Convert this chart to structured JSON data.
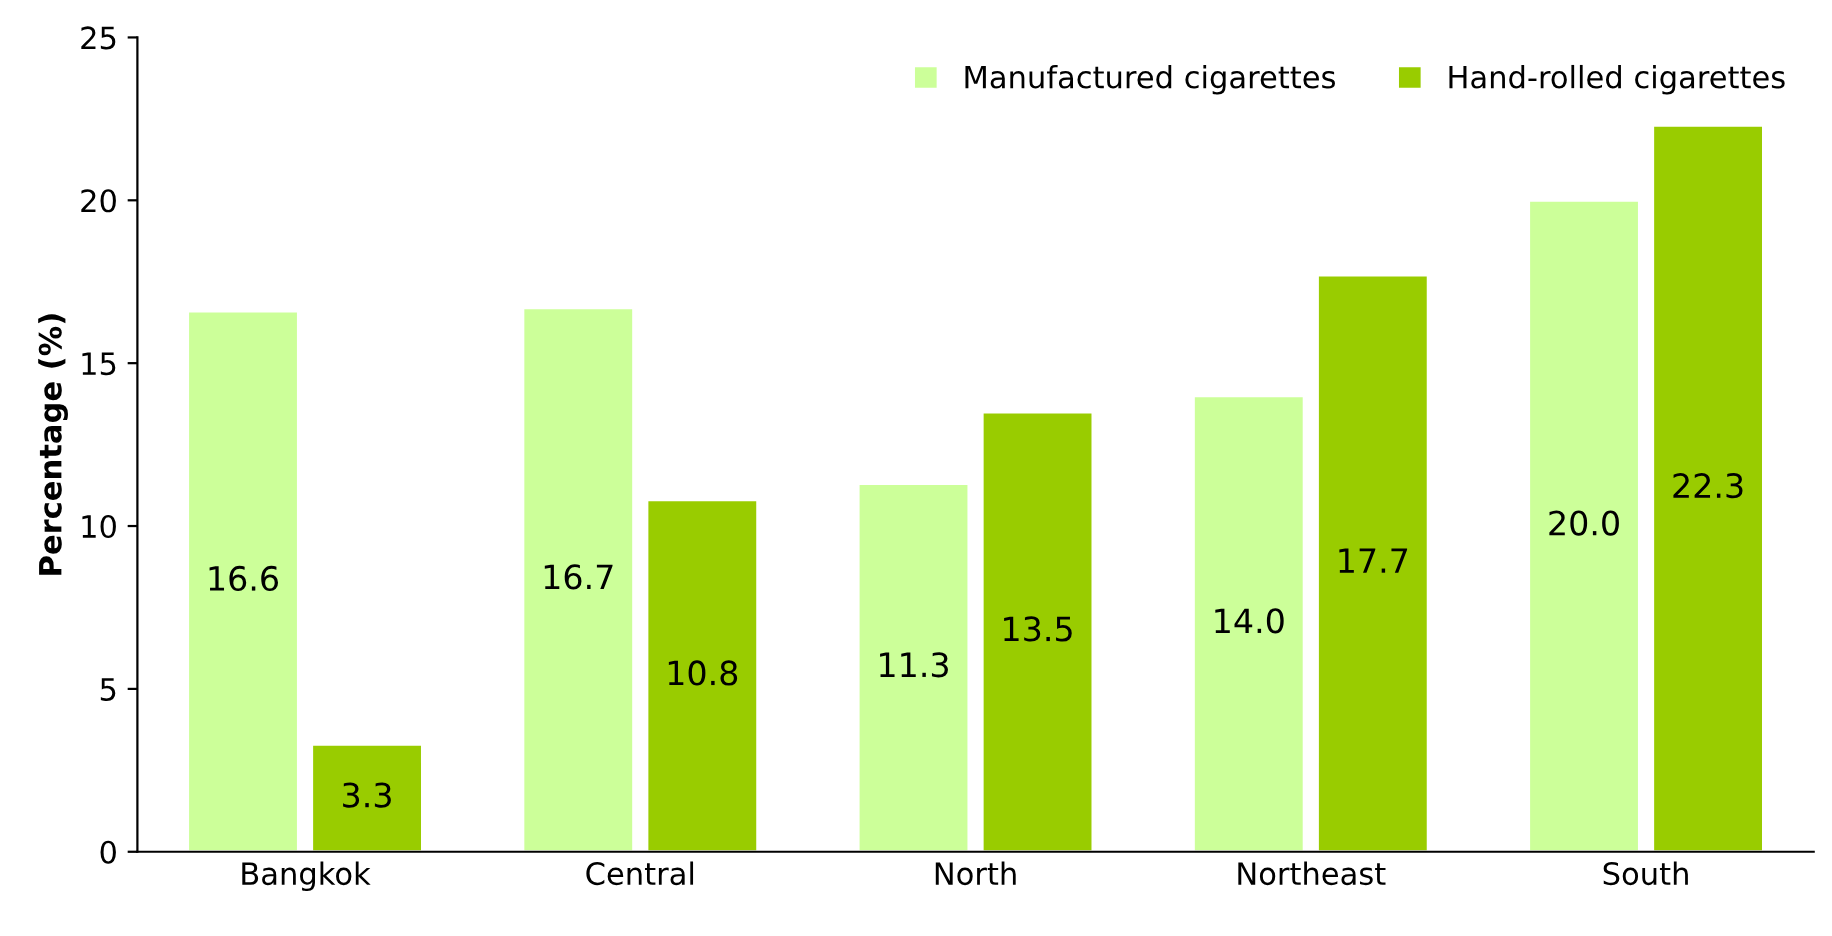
{
  "chart_data": {
    "type": "bar",
    "ylabel": "Percentage (%)",
    "categories": [
      "Bangkok",
      "Central",
      "North",
      "Northeast",
      "South"
    ],
    "series": [
      {
        "name": "Manufactured cigarettes",
        "color": "#ccff99",
        "values": [
          16.6,
          16.7,
          11.3,
          14.0,
          20.0
        ],
        "value_labels": [
          "16.6",
          "16.7",
          "11.3",
          "14.0",
          "20.0"
        ]
      },
      {
        "name": "Hand-rolled cigarettes",
        "color": "#99cc00",
        "values": [
          3.3,
          10.8,
          13.5,
          17.7,
          22.3
        ],
        "value_labels": [
          "3.3",
          "10.8",
          "13.5",
          "17.7",
          "22.3"
        ]
      }
    ],
    "ylim": [
      0,
      25
    ],
    "yticks": [
      0,
      5,
      10,
      15,
      20,
      25
    ],
    "grid": false,
    "legend": "top right"
  }
}
